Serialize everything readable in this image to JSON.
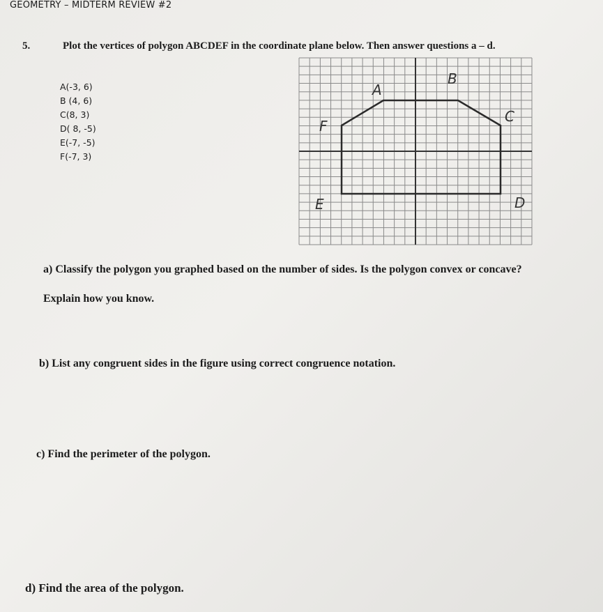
{
  "header": {
    "title": "GEOMETRY – MIDTERM REVIEW #2"
  },
  "question": {
    "number": "5.",
    "prompt": "Plot the vertices of polygon ABCDEF in the coordinate plane below. Then answer questions a – d."
  },
  "vertices": [
    "A(-3, 6)",
    "B (4, 6)",
    "C(8, 3)",
    "D( 8, -5)",
    "E(-7, -5)",
    "F(-7, 3)"
  ],
  "handwritten_labels": [
    "A",
    "B",
    "C",
    "D",
    "E",
    "F"
  ],
  "parts": [
    {
      "lines": [
        "a) Classify the polygon you graphed based on the number of sides. Is the polygon convex or concave?",
        "Explain how you know."
      ]
    },
    {
      "lines": [
        "b) List any congruent sides in the figure using correct congruence notation."
      ]
    },
    {
      "lines": [
        "c) Find the perimeter of the polygon."
      ]
    },
    {
      "lines": [
        "d) Find the area of the polygon."
      ]
    }
  ]
}
